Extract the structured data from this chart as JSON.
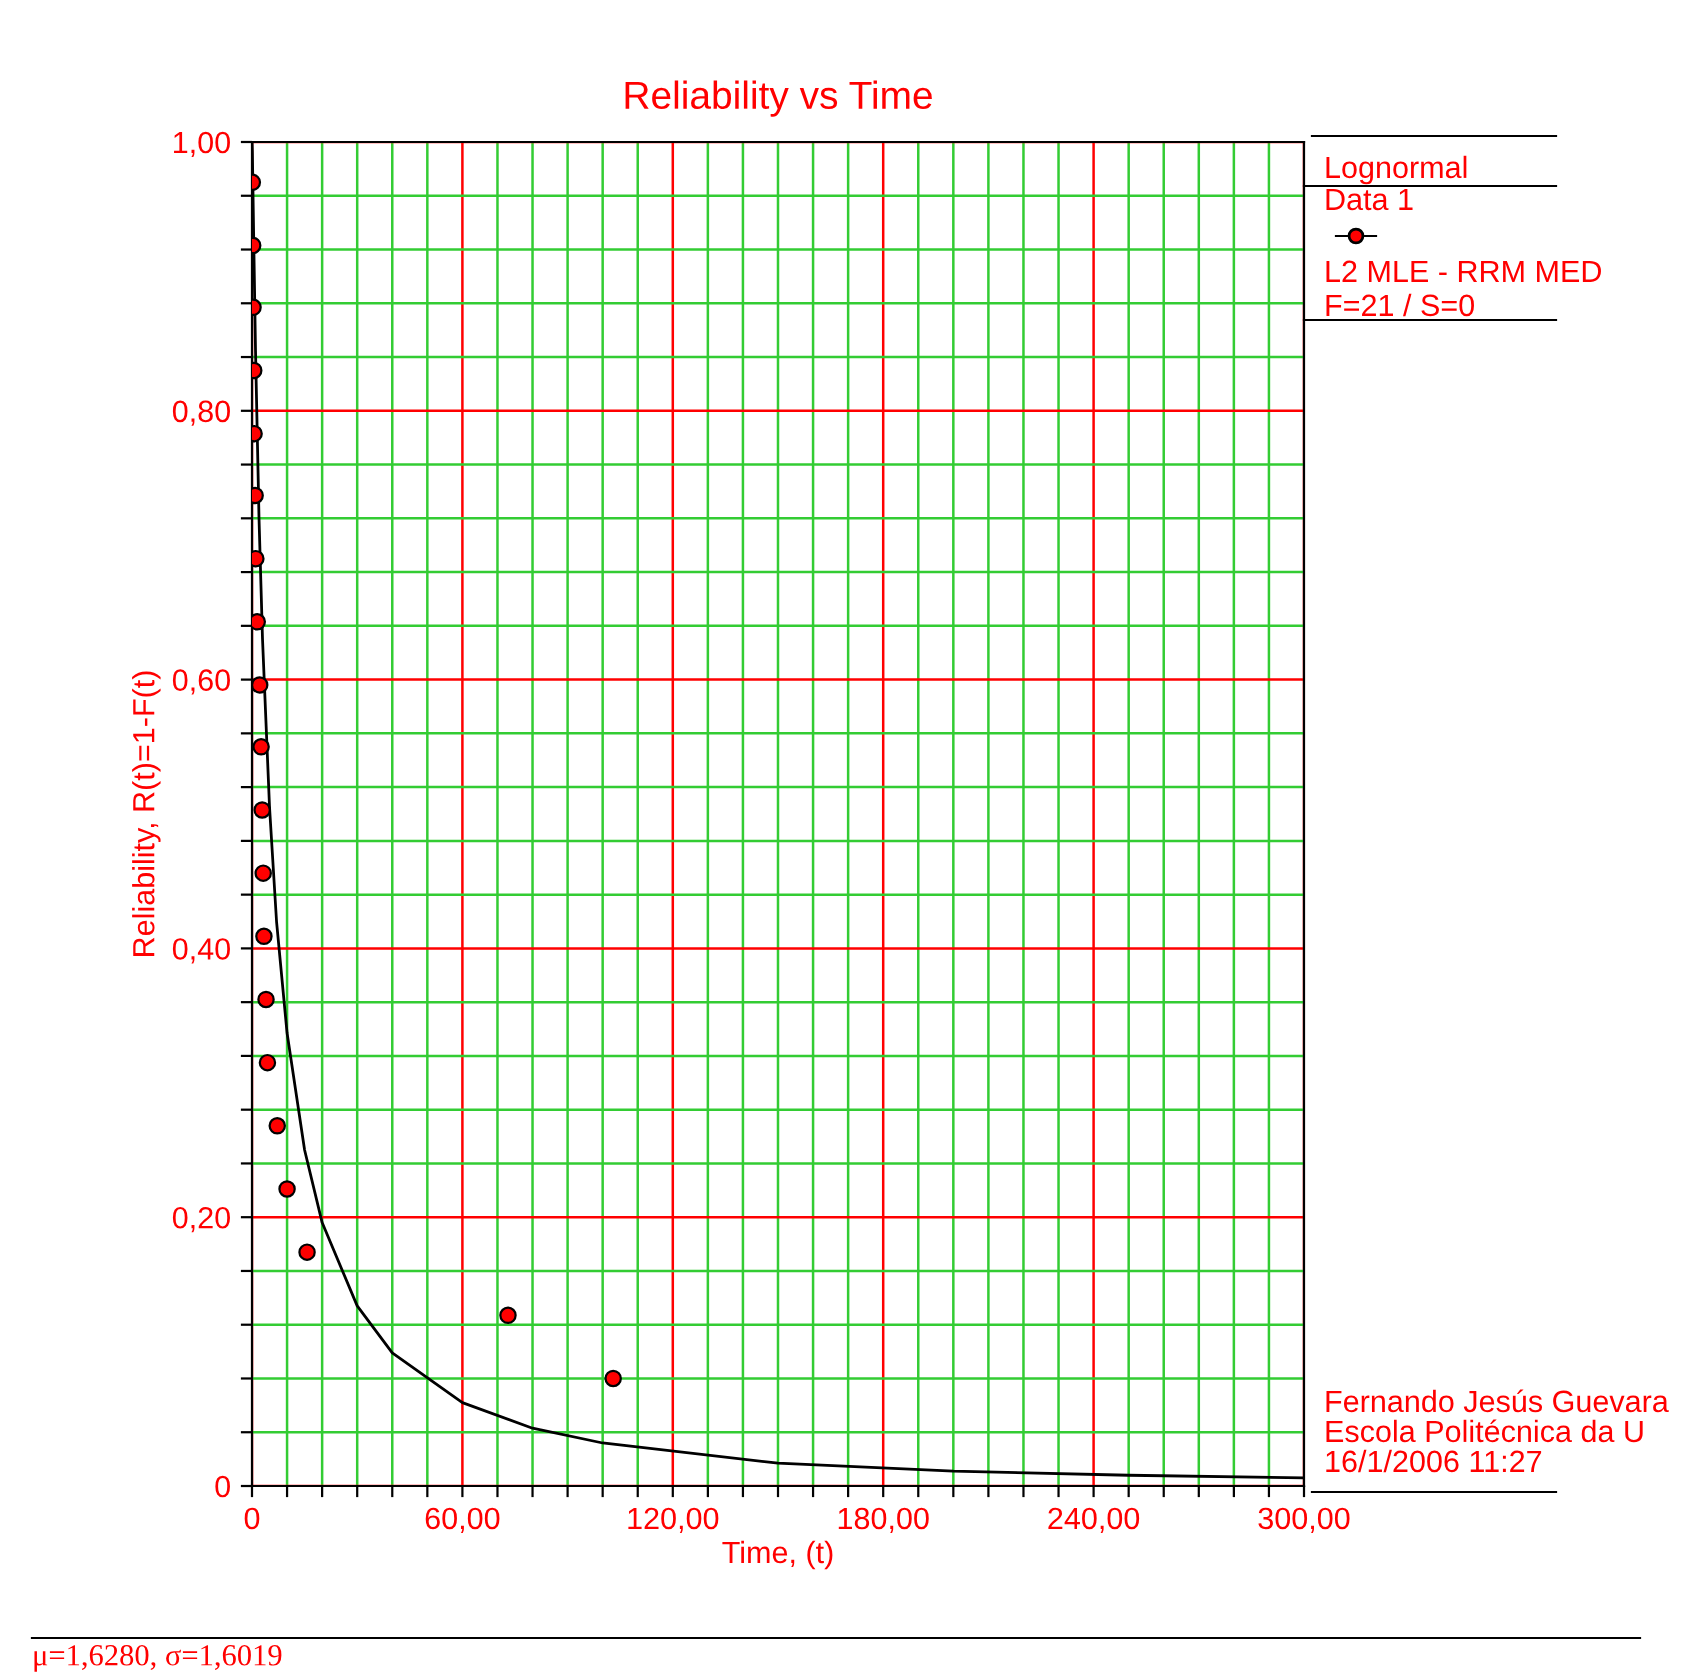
{
  "chart_data": {
    "type": "scatter",
    "title": "Reliability vs Time",
    "xlabel": "Time, (t)",
    "ylabel": "Reliability, R(t)=1-F(t)",
    "legend_title": "Lognormal",
    "legend": "right",
    "grid": true,
    "marker": "circle",
    "xlim": [
      0,
      300
    ],
    "ylim": [
      0,
      1
    ],
    "xticks": [
      0,
      {
        "value": 10,
        "label": null
      },
      {
        "value": 20,
        "label": null
      },
      {
        "value": 30,
        "label": null
      },
      {
        "value": 40,
        "label": null
      },
      {
        "value": 50,
        "label": null
      },
      {
        "value": 60,
        "label": "60,00"
      },
      {
        "value": 70,
        "label": null
      },
      {
        "value": 80,
        "label": null
      },
      {
        "value": 90,
        "label": null
      },
      {
        "value": 100,
        "label": null
      },
      {
        "value": 110,
        "label": null
      },
      {
        "value": 120,
        "label": "120,00"
      },
      {
        "value": 130,
        "label": null
      },
      {
        "value": 140,
        "label": null
      },
      {
        "value": 150,
        "label": null
      },
      {
        "value": 160,
        "label": null
      },
      {
        "value": 170,
        "label": null
      },
      {
        "value": 180,
        "label": "180,00"
      },
      {
        "value": 190,
        "label": null
      },
      {
        "value": 200,
        "label": null
      },
      {
        "value": 210,
        "label": null
      },
      {
        "value": 220,
        "label": null
      },
      {
        "value": 230,
        "label": null
      },
      {
        "value": 240,
        "label": "240,00"
      },
      {
        "value": 250,
        "label": null
      },
      {
        "value": 260,
        "label": null
      },
      {
        "value": 270,
        "label": null
      },
      {
        "value": 280,
        "label": null
      },
      {
        "value": 290,
        "label": null
      },
      {
        "value": 300,
        "label": "300,00"
      }
    ],
    "yticks": [
      0,
      {
        "value": 0.04,
        "label": null
      },
      {
        "value": 0.08,
        "label": null
      },
      {
        "value": 0.12,
        "label": null
      },
      {
        "value": 0.16,
        "label": null
      },
      {
        "value": 0.2,
        "label": "0,20"
      },
      {
        "value": 0.24,
        "label": null
      },
      {
        "value": 0.28,
        "label": null
      },
      {
        "value": 0.32,
        "label": null
      },
      {
        "value": 0.36,
        "label": null
      },
      {
        "value": 0.4,
        "label": "0,40"
      },
      {
        "value": 0.44,
        "label": null
      },
      {
        "value": 0.48,
        "label": null
      },
      {
        "value": 0.52,
        "label": null
      },
      {
        "value": 0.56,
        "label": null
      },
      {
        "value": 0.6,
        "label": "0,60"
      },
      {
        "value": 0.64,
        "label": null
      },
      {
        "value": 0.68,
        "label": null
      },
      {
        "value": 0.72,
        "label": null
      },
      {
        "value": 0.76,
        "label": null
      },
      {
        "value": 0.8,
        "label": "0,80"
      },
      {
        "value": 0.84,
        "label": null
      },
      {
        "value": 0.88,
        "label": null
      },
      {
        "value": 0.92,
        "label": null
      },
      {
        "value": 0.96,
        "label": null
      },
      {
        "value": 1.0,
        "label": "1,00"
      }
    ],
    "series": [
      {
        "name": "Data 1",
        "color": "#ff0000",
        "x": [
          0.1,
          0.2,
          0.3,
          0.5,
          0.6,
          0.9,
          1.1,
          1.5,
          2.2,
          2.6,
          2.9,
          3.2,
          3.4,
          4.0,
          4.4,
          7.2,
          10.0,
          15.7,
          73,
          103
        ],
        "values": [
          0.97,
          0.923,
          0.877,
          0.83,
          0.783,
          0.737,
          0.69,
          0.643,
          0.596,
          0.55,
          0.503,
          0.456,
          0.409,
          0.362,
          0.315,
          0.268,
          0.221,
          0.174,
          0.127,
          0.08
        ]
      },
      {
        "type": "line",
        "marker": "none",
        "color": "#000000",
        "x": [
          0.01,
          0.1,
          0.5,
          1,
          2,
          3,
          5,
          7,
          10,
          15,
          20,
          30,
          40,
          60,
          80,
          100,
          150,
          200,
          250,
          300
        ],
        "values": [
          1.0,
          0.993,
          0.926,
          0.845,
          0.72,
          0.63,
          0.505,
          0.42,
          0.337,
          0.25,
          0.196,
          0.134,
          0.099,
          0.062,
          0.043,
          0.032,
          0.017,
          0.011,
          0.008,
          0.006
        ]
      }
    ],
    "annotations": [
      "L2 MLE - RRM MED",
      "F=21 / S=0",
      "Fernando Jesús Guevara",
      "Escola Politécnica da U",
      "16/1/2006 11:27",
      "μ=1,6280, σ=1,6019"
    ]
  }
}
